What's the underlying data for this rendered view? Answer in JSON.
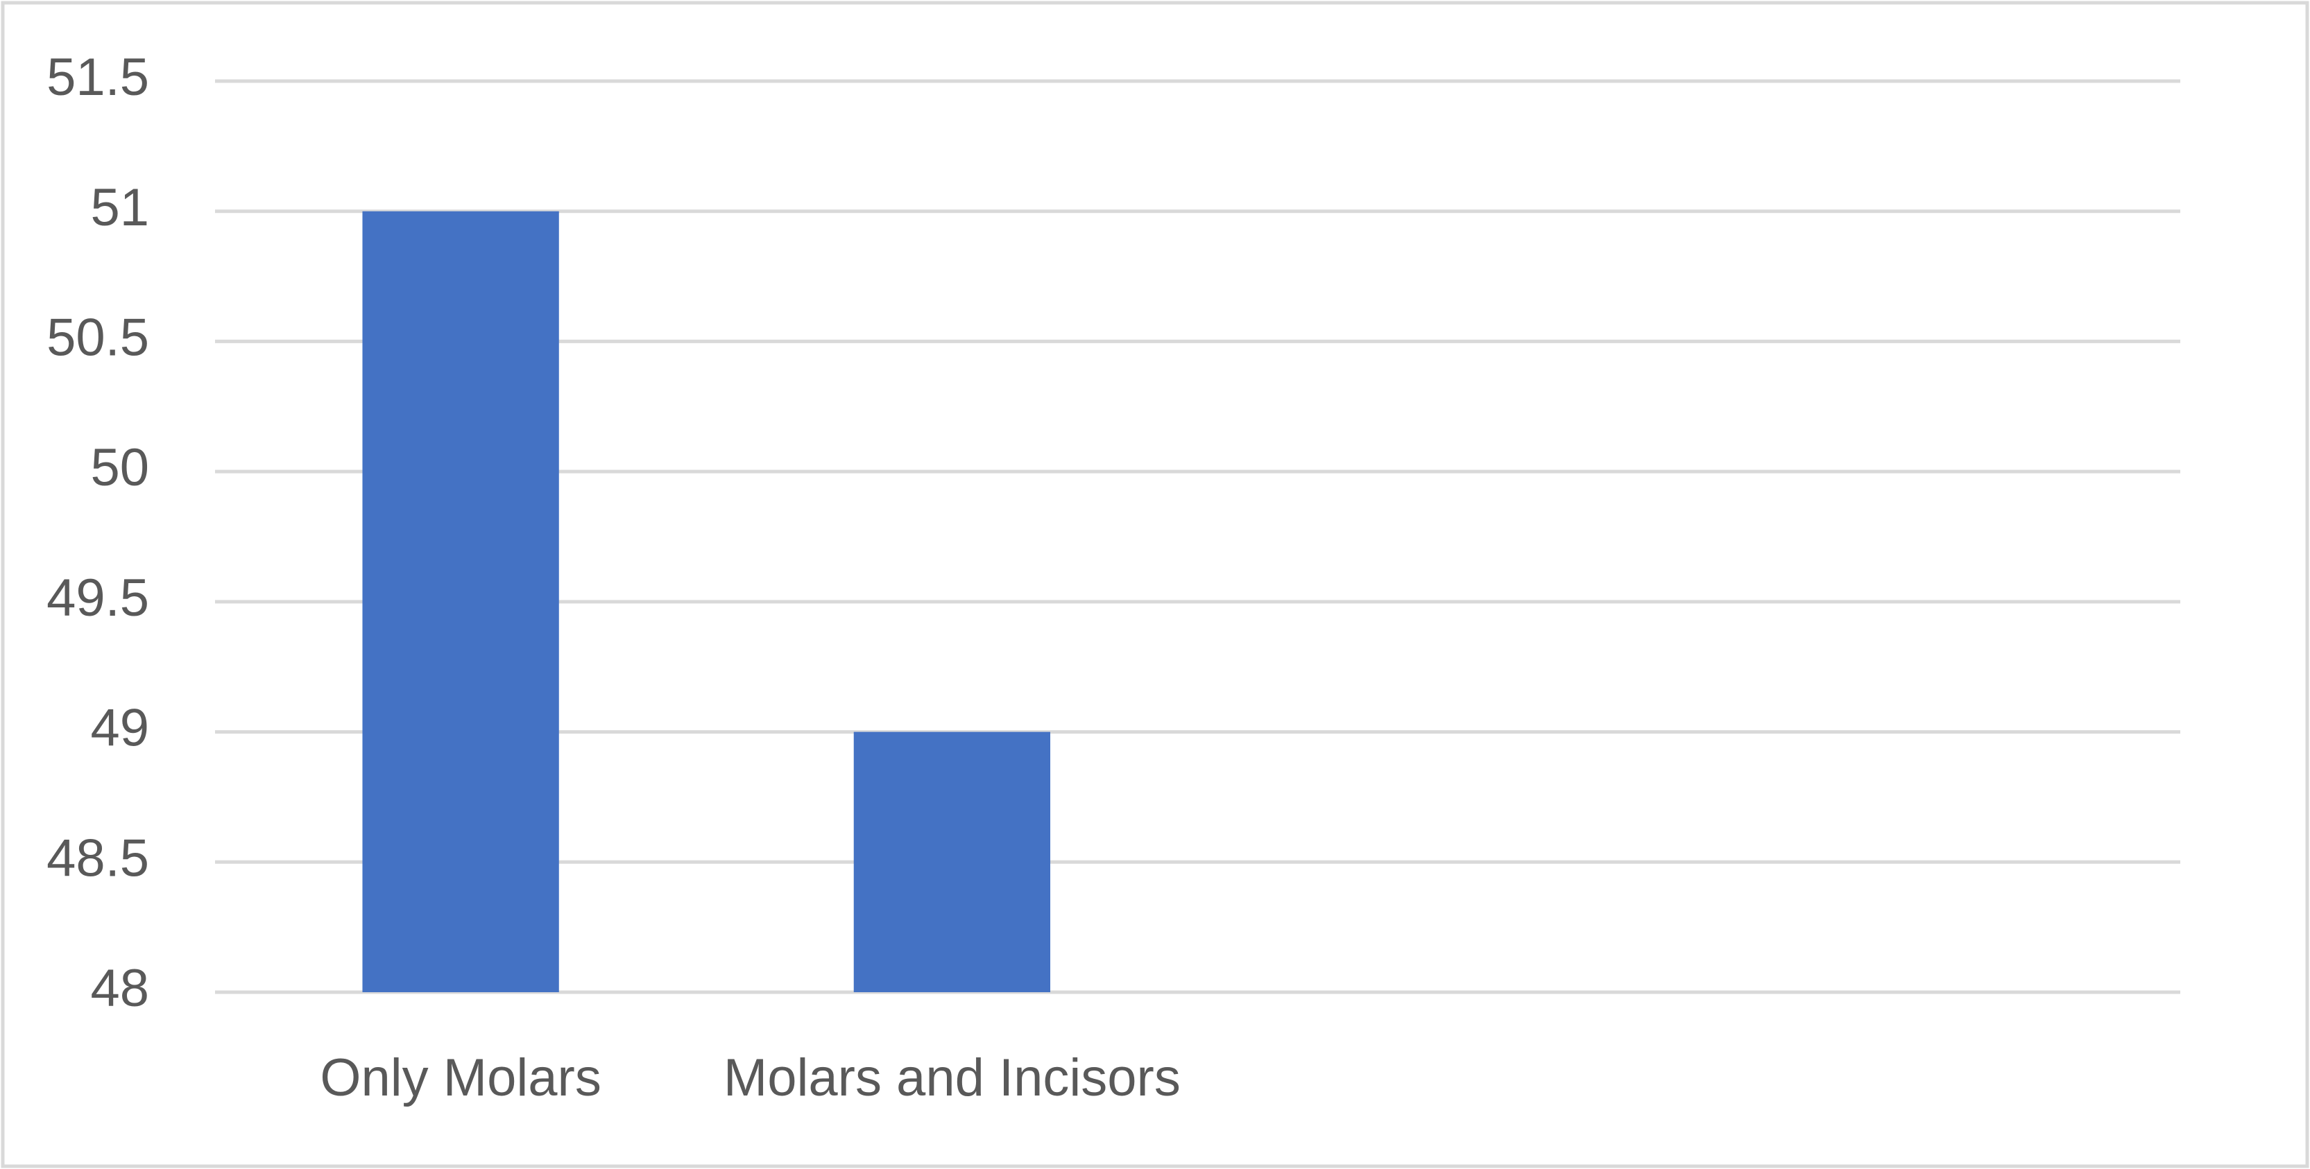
{
  "chart_data": {
    "type": "bar",
    "categories": [
      "Only Molars",
      "Molars and Incisors",
      null,
      null
    ],
    "values": [
      51,
      49,
      null,
      null
    ],
    "color": "#4472c4",
    "ylim": [
      48,
      51.5
    ],
    "yticks": [
      48,
      48.5,
      49,
      49.5,
      50,
      50.5,
      51,
      51.5
    ],
    "grid": true
  }
}
